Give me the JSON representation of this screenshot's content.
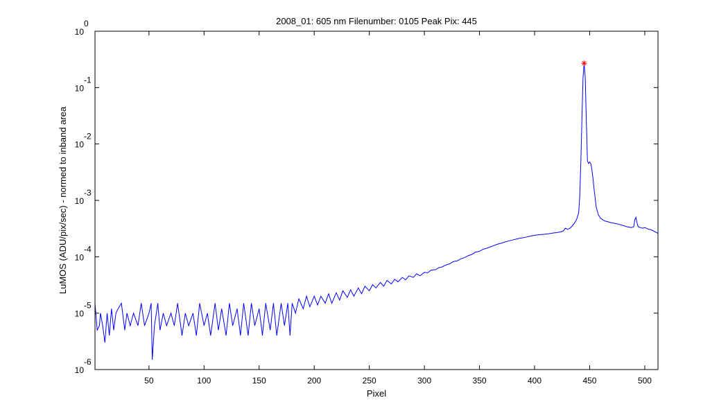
{
  "chart_data": {
    "type": "line",
    "title": "2008_01: 605 nm  Filenumber: 0105 Peak Pix: 445",
    "xlabel": "Pixel",
    "ylabel": "LuMOS (ADU/pix/sec) - normed to inband area",
    "xlim": [
      1,
      512
    ],
    "ylim": [
      1e-06,
      1
    ],
    "y_scale": "log",
    "grid": false,
    "x_ticks": [
      50,
      100,
      150,
      200,
      250,
      300,
      350,
      400,
      450,
      500
    ],
    "y_ticks": [
      {
        "value": 1e-06,
        "base": "10",
        "exp": "-6"
      },
      {
        "value": 1e-05,
        "base": "10",
        "exp": "-5"
      },
      {
        "value": 0.0001,
        "base": "10",
        "exp": "-4"
      },
      {
        "value": 0.001,
        "base": "10",
        "exp": "-3"
      },
      {
        "value": 0.01,
        "base": "10",
        "exp": "-2"
      },
      {
        "value": 0.1,
        "base": "10",
        "exp": "-1"
      },
      {
        "value": 1,
        "base": "10",
        "exp": "0"
      }
    ],
    "series": [
      {
        "color": "#0000ff",
        "points": [
          [
            1,
            1.5e-05
          ],
          [
            3,
            5e-06
          ],
          [
            5,
            6e-06
          ],
          [
            6,
            1e-05
          ],
          [
            8,
            6e-06
          ],
          [
            10,
            3e-06
          ],
          [
            12,
            1e-05
          ],
          [
            14,
            4e-06
          ],
          [
            16,
            1.2e-05
          ],
          [
            18,
            5e-06
          ],
          [
            20,
            1e-05
          ],
          [
            22,
            1.2e-05
          ],
          [
            25,
            1.5e-05
          ],
          [
            28,
            5e-06
          ],
          [
            30,
            1e-05
          ],
          [
            33,
            6e-06
          ],
          [
            36,
            1e-05
          ],
          [
            40,
            6e-06
          ],
          [
            43,
            1.5e-05
          ],
          [
            46,
            6e-06
          ],
          [
            50,
            1e-05
          ],
          [
            52,
            1.5e-05
          ],
          [
            53,
            1.5e-06
          ],
          [
            55,
            6e-06
          ],
          [
            58,
            1.5e-05
          ],
          [
            60,
            5e-06
          ],
          [
            63,
            1e-05
          ],
          [
            66,
            6e-06
          ],
          [
            70,
            1e-05
          ],
          [
            73,
            6e-06
          ],
          [
            76,
            1.5e-05
          ],
          [
            80,
            4e-06
          ],
          [
            83,
            1e-05
          ],
          [
            86,
            6e-06
          ],
          [
            90,
            1e-05
          ],
          [
            93,
            4e-06
          ],
          [
            96,
            1.5e-05
          ],
          [
            100,
            6e-06
          ],
          [
            103,
            1e-05
          ],
          [
            106,
            4e-06
          ],
          [
            110,
            1.5e-05
          ],
          [
            113,
            5e-06
          ],
          [
            116,
            1.2e-05
          ],
          [
            120,
            4e-06
          ],
          [
            123,
            1.5e-05
          ],
          [
            126,
            6e-06
          ],
          [
            130,
            1.2e-05
          ],
          [
            133,
            4e-06
          ],
          [
            136,
            1.5e-05
          ],
          [
            140,
            4e-06
          ],
          [
            143,
            1.5e-05
          ],
          [
            146,
            6e-06
          ],
          [
            150,
            1.2e-05
          ],
          [
            153,
            4e-06
          ],
          [
            156,
            1.5e-05
          ],
          [
            160,
            5e-06
          ],
          [
            163,
            1.5e-05
          ],
          [
            166,
            4e-06
          ],
          [
            170,
            1.5e-05
          ],
          [
            173,
            6e-06
          ],
          [
            176,
            1.5e-05
          ],
          [
            178,
            4e-06
          ],
          [
            180,
            1.5e-05
          ],
          [
            183,
            1e-05
          ],
          [
            186,
            1.8e-05
          ],
          [
            190,
            1.2e-05
          ],
          [
            193,
            2e-05
          ],
          [
            196,
            1.3e-05
          ],
          [
            200,
            2e-05
          ],
          [
            203,
            1.4e-05
          ],
          [
            206,
            2e-05
          ],
          [
            210,
            1.5e-05
          ],
          [
            213,
            2.2e-05
          ],
          [
            216,
            1.5e-05
          ],
          [
            220,
            2.3e-05
          ],
          [
            223,
            1.7e-05
          ],
          [
            226,
            2.5e-05
          ],
          [
            230,
            1.9e-05
          ],
          [
            233,
            2.6e-05
          ],
          [
            236,
            2e-05
          ],
          [
            240,
            2.8e-05
          ],
          [
            243,
            2.2e-05
          ],
          [
            246,
            3e-05
          ],
          [
            250,
            2.5e-05
          ],
          [
            253,
            3.2e-05
          ],
          [
            256,
            2.8e-05
          ],
          [
            260,
            3.5e-05
          ],
          [
            263,
            3e-05
          ],
          [
            266,
            3.8e-05
          ],
          [
            270,
            3.3e-05
          ],
          [
            273,
            4e-05
          ],
          [
            276,
            3.6e-05
          ],
          [
            280,
            4.3e-05
          ],
          [
            283,
            3.9e-05
          ],
          [
            286,
            4.6e-05
          ],
          [
            290,
            4.3e-05
          ],
          [
            293,
            5e-05
          ],
          [
            296,
            4.6e-05
          ],
          [
            300,
            5.3e-05
          ],
          [
            303,
            5.2e-05
          ],
          [
            306,
            5.8e-05
          ],
          [
            310,
            5.9e-05
          ],
          [
            313,
            6.4e-05
          ],
          [
            316,
            6.6e-05
          ],
          [
            320,
            7.2e-05
          ],
          [
            323,
            7.5e-05
          ],
          [
            326,
            8.2e-05
          ],
          [
            330,
            8.5e-05
          ],
          [
            333,
            9.2e-05
          ],
          [
            336,
            9.6e-05
          ],
          [
            340,
            0.000105
          ],
          [
            343,
            0.00011
          ],
          [
            346,
            0.00012
          ],
          [
            350,
            0.000125
          ],
          [
            353,
            0.000135
          ],
          [
            356,
            0.00014
          ],
          [
            360,
            0.00015
          ],
          [
            363,
            0.000158
          ],
          [
            366,
            0.000166
          ],
          [
            370,
            0.000175
          ],
          [
            373,
            0.000183
          ],
          [
            376,
            0.00019
          ],
          [
            380,
            0.000198
          ],
          [
            383,
            0.000205
          ],
          [
            386,
            0.000212
          ],
          [
            390,
            0.000218
          ],
          [
            393,
            0.000225
          ],
          [
            396,
            0.000232
          ],
          [
            400,
            0.00024
          ],
          [
            403,
            0.000245
          ],
          [
            406,
            0.000248
          ],
          [
            410,
            0.000252
          ],
          [
            413,
            0.000256
          ],
          [
            416,
            0.000262
          ],
          [
            420,
            0.000268
          ],
          [
            423,
            0.000275
          ],
          [
            426,
            0.000285
          ],
          [
            428,
            0.00032
          ],
          [
            430,
            0.000305
          ],
          [
            432,
            0.00032
          ],
          [
            434,
            0.00035
          ],
          [
            436,
            0.00039
          ],
          [
            438,
            0.00045
          ],
          [
            440,
            0.0006
          ],
          [
            441,
            0.0012
          ],
          [
            442,
            0.005
          ],
          [
            443,
            0.03
          ],
          [
            444,
            0.15
          ],
          [
            445,
            0.27
          ],
          [
            446,
            0.15
          ],
          [
            447,
            0.025
          ],
          [
            448,
            0.005
          ],
          [
            449,
            0.0045
          ],
          [
            450,
            0.0048
          ],
          [
            451,
            0.0045
          ],
          [
            452,
            0.0035
          ],
          [
            453,
            0.0025
          ],
          [
            454,
            0.0016
          ],
          [
            455,
            0.0011
          ],
          [
            456,
            0.00075
          ],
          [
            458,
            0.00055
          ],
          [
            460,
            0.00048
          ],
          [
            462,
            0.00045
          ],
          [
            464,
            0.00043
          ],
          [
            466,
            0.00042
          ],
          [
            468,
            0.00041
          ],
          [
            470,
            0.0004
          ],
          [
            473,
            0.00039
          ],
          [
            476,
            0.00038
          ],
          [
            480,
            0.00036
          ],
          [
            484,
            0.00034
          ],
          [
            488,
            0.00033
          ],
          [
            490,
            0.00034
          ],
          [
            491,
            0.00045
          ],
          [
            492,
            0.0005
          ],
          [
            493,
            0.0004
          ],
          [
            494,
            0.00034
          ],
          [
            496,
            0.00033
          ],
          [
            498,
            0.00032
          ],
          [
            500,
            0.00033
          ],
          [
            503,
            0.00031
          ],
          [
            506,
            0.0003
          ],
          [
            509,
            0.00028
          ],
          [
            512,
            0.00026
          ]
        ]
      }
    ],
    "peak_marker": {
      "x": 445,
      "y": 0.27,
      "color": "#ff0000",
      "symbol": "*"
    }
  }
}
